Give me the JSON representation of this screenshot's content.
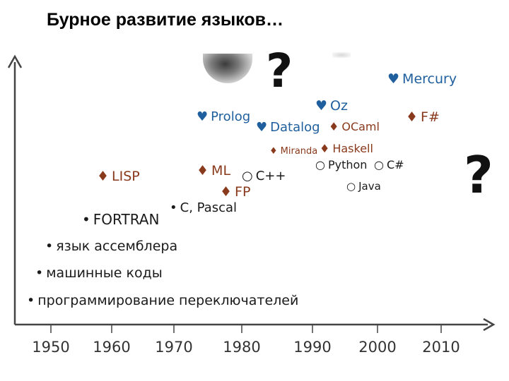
{
  "title": "Бурное развитие языков…",
  "colors": {
    "axis": "#444444",
    "black": "#1a1a1a",
    "blue": "#1f5f9e",
    "brown": "#8a3a1c"
  },
  "x_axis": {
    "ticks": [
      "1950",
      "1960",
      "1970",
      "1980",
      "1990",
      "2000",
      "2010"
    ]
  },
  "question_mark": "?",
  "items": {
    "switch_programming": "программирование переключателей",
    "machine_codes": "машинные коды",
    "assembler": "язык ассемблера",
    "fortran": "FORTRAN",
    "c_pascal": "C, Pascal",
    "lisp": "LISP",
    "ml": "ML",
    "fp": "FP",
    "prolog": "Prolog",
    "cpp": "C++",
    "datalog": "Datalog",
    "miranda": "Miranda",
    "oz": "Oz",
    "ocaml": "OCaml",
    "haskell": "Haskell",
    "python": "Python",
    "csharp": "C#",
    "java": "Java",
    "mercury": "Mercury",
    "fsharp": "F#"
  },
  "icons": {
    "bullet": "bullet-icon",
    "diamond": "diamond-icon",
    "heart": "heart-icon",
    "circle": "circle-icon"
  }
}
